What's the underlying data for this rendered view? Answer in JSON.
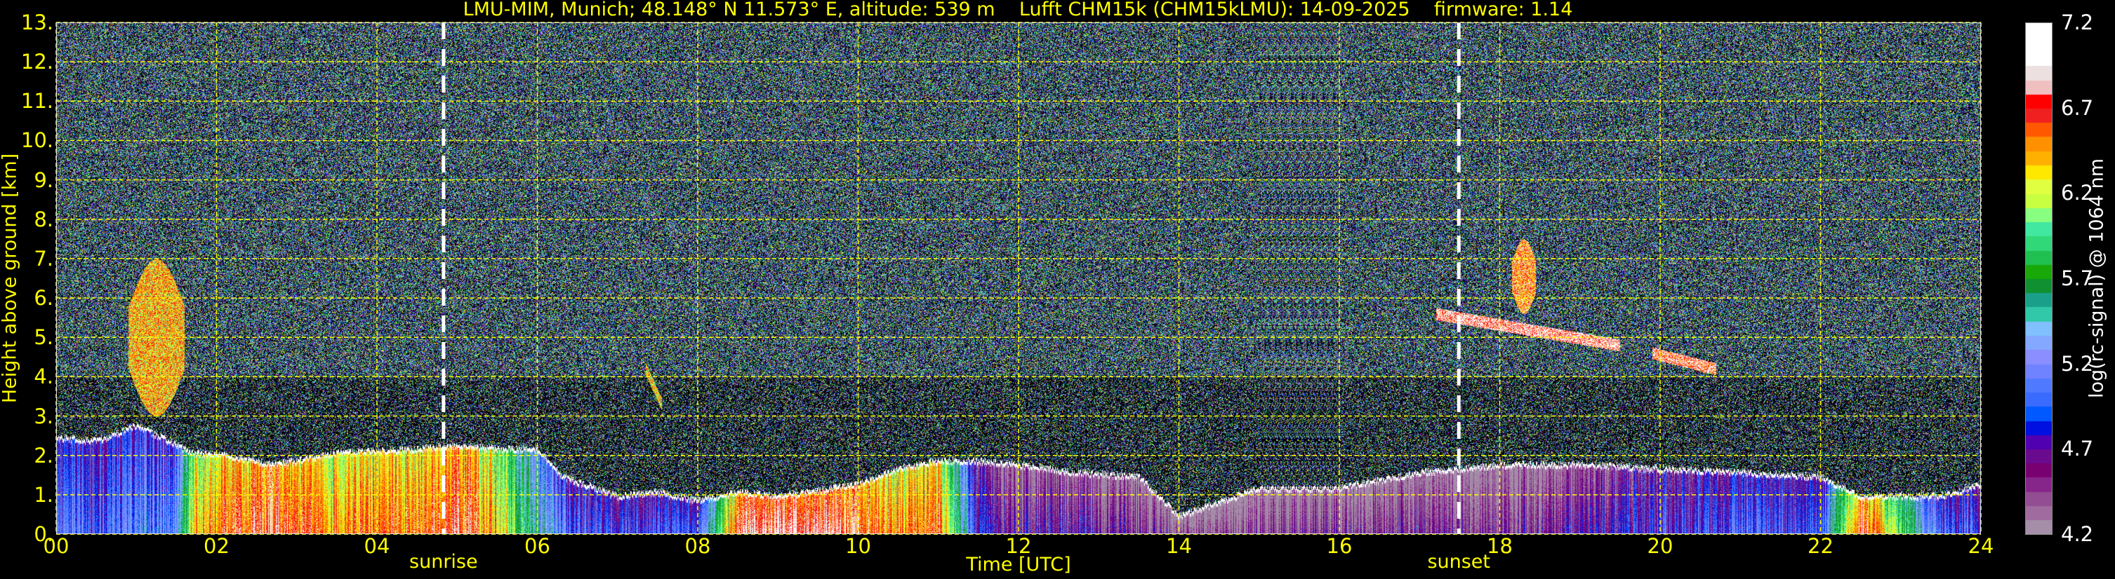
{
  "chart_data": {
    "type": "heatmap",
    "title": "LMU-MIM, Munich; 48.148° N 11.573° E, altitude: 539 m    Lufft CHM15k (CHM15kLMU): 14-09-2025    firmware: 1.14",
    "xlabel": "Time [UTC]",
    "ylabel": "Height above ground [km]",
    "xlim": [
      0,
      24
    ],
    "ylim": [
      0,
      13
    ],
    "x_ticks": [
      0,
      2,
      4,
      6,
      8,
      10,
      12,
      14,
      16,
      18,
      20,
      22,
      24
    ],
    "x_tick_labels": [
      "00",
      "02",
      "04",
      "06",
      "08",
      "10",
      "12",
      "14",
      "16",
      "18",
      "20",
      "22",
      "24"
    ],
    "y_ticks": [
      0,
      1,
      2,
      3,
      4,
      5,
      6,
      7,
      8,
      9,
      10,
      11,
      12,
      13
    ],
    "y_tick_labels": [
      "0.",
      "1.",
      "2.",
      "3.",
      "4.",
      "5.",
      "6.",
      "7.",
      "8.",
      "9.",
      "10.",
      "11.",
      "12.",
      "13."
    ],
    "grid": true,
    "grid_color": "#ffff00",
    "annotations": [
      {
        "label": "sunrise",
        "time_h": 4.83
      },
      {
        "label": "sunset",
        "time_h": 17.49
      }
    ],
    "colorbar": {
      "label": "log(rc-signal) @ 1064 nm",
      "range": [
        4.2,
        7.2
      ],
      "ticks": [
        4.2,
        4.7,
        5.2,
        5.7,
        6.2,
        6.7,
        7.2
      ],
      "tick_labels": [
        "4.2",
        "4.7",
        "5.2",
        "5.7",
        "6.2",
        "6.7",
        "7.2"
      ],
      "colors": [
        "#a48ea8",
        "#a06b9e",
        "#934d93",
        "#87268a",
        "#780070",
        "#6a0a8e",
        "#5000b0",
        "#0010e0",
        "#0058ff",
        "#3a6bff",
        "#4f7aff",
        "#6f82ff",
        "#8a8eff",
        "#84a8ff",
        "#80c0ff",
        "#30c8a8",
        "#1aa08a",
        "#109030",
        "#18a808",
        "#20c050",
        "#30d878",
        "#40e8a0",
        "#88ff80",
        "#c8ff40",
        "#e0ff40",
        "#ffe800",
        "#ffb000",
        "#ff9000",
        "#ff5800",
        "#f02020",
        "#ff0000",
        "#f0c0c0",
        "#ece0e0",
        "#ffffff",
        "#ffffff",
        "#ffffff"
      ]
    },
    "aerosol_layer_top_km": {
      "time_h": [
        0,
        0.5,
        1.0,
        1.5,
        1.7,
        2.2,
        2.7,
        3.5,
        4.5,
        5.0,
        5.5,
        6.0,
        6.3,
        7.0,
        7.5,
        8.0,
        8.5,
        9.0,
        10.0,
        10.5,
        11.0,
        11.5,
        12.0,
        12.7,
        13.5,
        14.0,
        15.0,
        16.0,
        17.0,
        18.0,
        19.0,
        20.0,
        21.0,
        22.0,
        22.5,
        23.5,
        24.0
      ],
      "top_km": [
        2.5,
        2.4,
        2.8,
        2.3,
        2.1,
        2.0,
        1.8,
        2.1,
        2.2,
        2.3,
        2.2,
        2.2,
        1.5,
        1.0,
        1.1,
        0.9,
        1.1,
        1.0,
        1.3,
        1.7,
        1.9,
        1.9,
        1.8,
        1.6,
        1.5,
        0.5,
        1.2,
        1.2,
        1.6,
        1.8,
        1.8,
        1.7,
        1.6,
        1.5,
        1.0,
        1.0,
        1.3
      ],
      "log_signal": [
        5.1,
        5.0,
        5.2,
        5.2,
        6.4,
        6.6,
        6.8,
        6.5,
        6.6,
        6.8,
        6.4,
        5.5,
        5.1,
        4.9,
        5.0,
        5.0,
        6.8,
        6.9,
        6.8,
        6.5,
        6.6,
        4.8,
        4.6,
        4.6,
        4.5,
        4.4,
        4.4,
        4.5,
        4.5,
        4.5,
        4.6,
        4.9,
        5.0,
        5.0,
        6.9,
        5.0,
        5.0
      ]
    },
    "elevated_layers": [
      {
        "time_h": [
          0.9,
          1.6
        ],
        "height_km": [
          3.0,
          7.0
        ],
        "log_signal": 6.4
      },
      {
        "time_h": [
          7.35,
          7.55
        ],
        "height_km": [
          3.3,
          4.2
        ],
        "log_signal": 6.3
      },
      {
        "time_h": [
          17.2,
          19.5
        ],
        "height_km": [
          4.8,
          5.6
        ],
        "log_signal": 6.9
      },
      {
        "time_h": [
          18.15,
          18.45
        ],
        "height_km": [
          5.6,
          7.5
        ],
        "log_signal": 6.6
      },
      {
        "time_h": [
          19.9,
          20.7
        ],
        "height_km": [
          4.2,
          4.6
        ],
        "log_signal": 6.8
      }
    ]
  }
}
